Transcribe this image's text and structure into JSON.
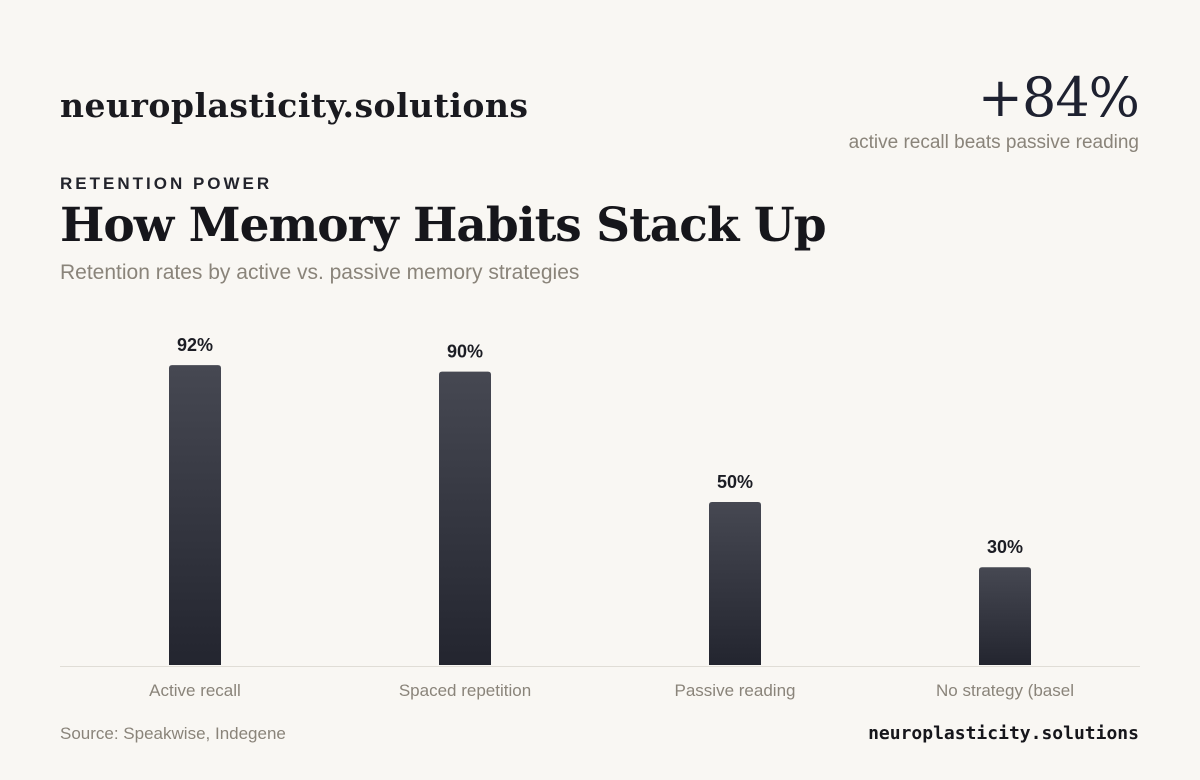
{
  "header": {
    "brand": "neuroplasticity.solutions",
    "stat_value": "+84%",
    "stat_caption": "active recall beats passive reading"
  },
  "eyebrow": "RETENTION POWER",
  "title": "How Memory Habits Stack Up",
  "subtitle": "Retention rates by active vs. passive memory strategies",
  "footer": {
    "source": "Source: Speakwise, Indegene",
    "brand": "neuroplasticity.solutions"
  },
  "colors": {
    "background": "#f9f7f3",
    "bar_top": "#464852",
    "bar_bottom": "#23252f",
    "baseline": "#e0ddd6",
    "value_label": "#1c1d24",
    "category_label": "#8a847a"
  },
  "chart_data": {
    "type": "bar",
    "categories": [
      "Active recall",
      "Spaced repetition",
      "Passive reading",
      "No strategy (basel"
    ],
    "values": [
      92,
      90,
      50,
      30
    ],
    "value_labels": [
      "92%",
      "90%",
      "50%",
      "30%"
    ],
    "title": "How Memory Habits Stack Up",
    "xlabel": "",
    "ylabel": "",
    "ylim": [
      0,
      100
    ],
    "grid": false,
    "legend": "none"
  }
}
